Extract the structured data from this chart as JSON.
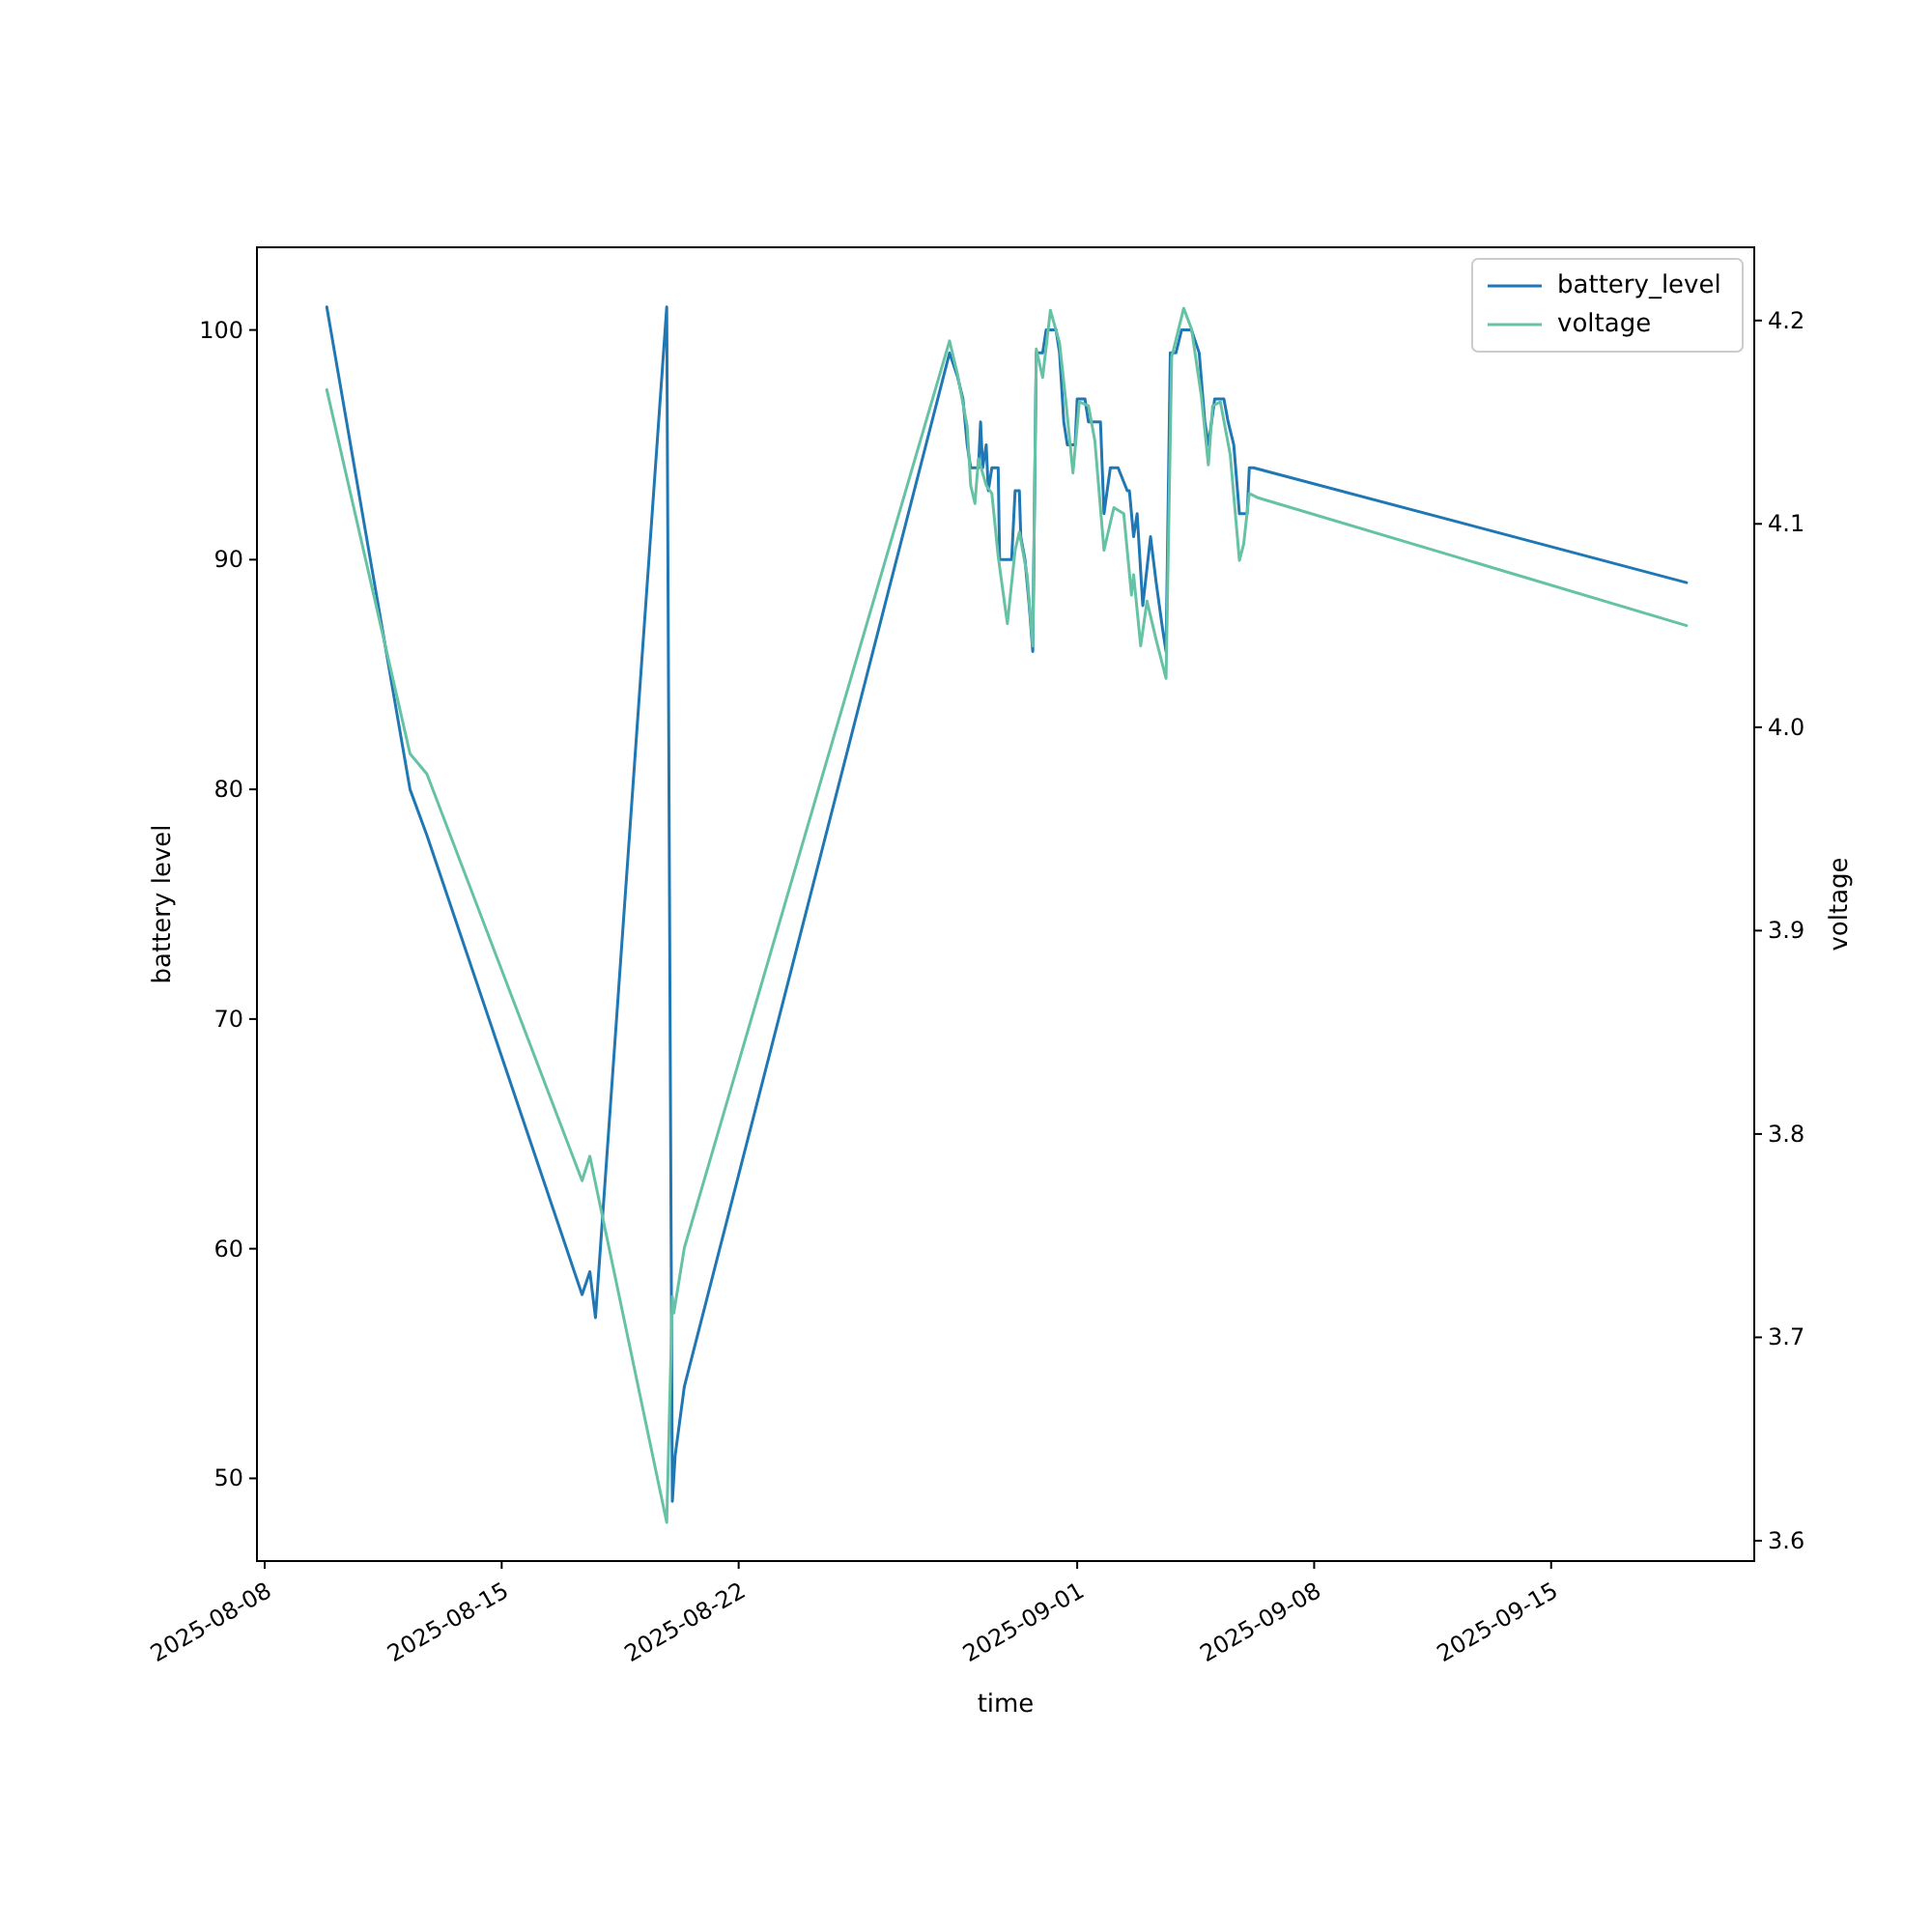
{
  "chart_data": {
    "type": "line",
    "xlabel": "time",
    "ylabel": "battery level",
    "y2label": "voltage",
    "xlim": [
      "2025-08-07T18:30",
      "2025-09-21T00:00"
    ],
    "xticks": [
      "2025-08-08",
      "2025-08-15",
      "2025-08-22",
      "2025-09-01",
      "2025-09-08",
      "2025-09-15"
    ],
    "ylim": [
      46.4,
      103.6
    ],
    "yticks": [
      50,
      60,
      70,
      80,
      90,
      100
    ],
    "y2lim": [
      3.59,
      4.236
    ],
    "y2ticks": [
      3.6,
      3.7,
      3.8,
      3.9,
      {
        "value": 4,
        "label": "4.0"
      },
      4.1,
      4.2
    ],
    "legend": "top right",
    "grid": false,
    "series": [
      {
        "name": "battery_level",
        "color": "#1f77b4",
        "x": [
          "2025-08-09T20:00",
          "2025-08-12T07:00",
          "2025-08-12T19:00",
          "2025-08-17T09:00",
          "2025-08-17T14:30",
          "2025-08-17T18:30",
          "2025-08-19T21:00",
          "2025-08-20T01:00",
          "2025-08-20T03:00",
          "2025-08-20T09:30",
          "2025-08-28T05:30",
          "2025-08-28T11:00",
          "2025-08-28T15:00",
          "2025-08-28T18:00",
          "2025-08-28T20:30",
          "2025-08-29T02:00",
          "2025-08-29T03:30",
          "2025-08-29T05:00",
          "2025-08-29T07:30",
          "2025-08-29T09:00",
          "2025-08-29T11:30",
          "2025-08-29T16:00",
          "2025-08-29T17:00",
          "2025-08-30T01:30",
          "2025-08-30T04:00",
          "2025-08-30T07:00",
          "2025-08-30T08:00",
          "2025-08-30T11:00",
          "2025-08-30T14:00",
          "2025-08-30T16:30",
          "2025-08-30T19:00",
          "2025-08-30T23:30",
          "2025-08-31T02:00",
          "2025-08-31T09:00",
          "2025-08-31T11:30",
          "2025-08-31T14:30",
          "2025-08-31T17:00",
          "2025-08-31T22:30",
          "2025-09-01T00:00",
          "2025-09-01T05:30",
          "2025-09-01T08:00",
          "2025-09-01T12:30",
          "2025-09-01T16:30",
          "2025-09-01T19:00",
          "2025-09-01T23:30",
          "2025-09-02T05:00",
          "2025-09-02T11:30",
          "2025-09-02T13:00",
          "2025-09-02T16:00",
          "2025-09-02T18:30",
          "2025-09-02T22:30",
          "2025-09-03T04:00",
          "2025-09-03T08:00",
          "2025-09-03T12:30",
          "2025-09-03T15:00",
          "2025-09-03T18:00",
          "2025-09-03T22:00",
          "2025-09-04T02:00",
          "2025-09-04T09:00",
          "2025-09-04T14:30",
          "2025-09-04T18:30",
          "2025-09-04T21:00",
          "2025-09-05T01:30",
          "2025-09-05T08:00",
          "2025-09-05T11:00",
          "2025-09-05T15:00",
          "2025-09-05T19:00",
          "2025-09-06T00:30",
          "2025-09-06T02:00",
          "2025-09-06T05:00",
          "2025-09-19T00:00"
        ],
        "values": [
          101,
          80,
          78,
          58,
          59,
          57,
          101,
          49,
          51,
          54,
          99,
          98,
          97,
          95,
          94,
          94,
          96,
          94,
          95,
          93,
          94,
          94,
          90,
          90,
          93,
          93,
          91,
          90,
          88,
          86,
          99,
          99,
          100,
          100,
          99,
          96,
          95,
          95,
          97,
          97,
          96,
          96,
          96,
          92,
          94,
          94,
          93,
          93,
          91,
          92,
          88,
          91,
          89,
          87,
          86,
          99,
          99,
          100,
          100,
          99,
          96,
          95,
          97,
          97,
          96,
          95,
          92,
          92,
          94,
          94,
          89
        ]
      },
      {
        "name": "voltage",
        "color": "#66c2a5",
        "axis": "y2",
        "x": [
          "2025-08-09T20:00",
          "2025-08-12T07:00",
          "2025-08-12T19:00",
          "2025-08-17T09:00",
          "2025-08-17T14:30",
          "2025-08-19T21:00",
          "2025-08-20T01:00",
          "2025-08-20T02:00",
          "2025-08-20T09:30",
          "2025-08-28T05:30",
          "2025-08-28T11:00",
          "2025-08-28T18:00",
          "2025-08-28T20:30",
          "2025-08-28T23:30",
          "2025-08-29T02:00",
          "2025-08-29T07:30",
          "2025-08-29T11:30",
          "2025-08-29T16:00",
          "2025-08-29T21:30",
          "2025-08-29T22:30",
          "2025-08-30T04:00",
          "2025-08-30T07:00",
          "2025-08-30T12:30",
          "2025-08-30T16:30",
          "2025-08-30T19:00",
          "2025-08-30T23:30",
          "2025-08-31T05:00",
          "2025-08-31T11:30",
          "2025-08-31T16:00",
          "2025-08-31T21:00",
          "2025-09-01T01:30",
          "2025-09-01T08:00",
          "2025-09-01T12:30",
          "2025-09-01T19:00",
          "2025-09-02T02:00",
          "2025-09-02T09:00",
          "2025-09-02T14:30",
          "2025-09-02T16:00",
          "2025-09-02T21:00",
          "2025-09-03T01:30",
          "2025-09-03T08:00",
          "2025-09-03T15:00",
          "2025-09-03T19:00",
          "2025-09-04T03:30",
          "2025-09-04T09:00",
          "2025-09-04T16:00",
          "2025-09-04T21:00",
          "2025-09-05T00:00",
          "2025-09-05T05:30",
          "2025-09-05T12:30",
          "2025-09-05T19:00",
          "2025-09-05T22:00",
          "2025-09-06T02:00",
          "2025-09-06T07:30",
          "2025-09-19T00:00"
        ],
        "values": [
          4.166,
          3.987,
          3.977,
          3.777,
          3.789,
          3.609,
          3.72,
          3.712,
          3.744,
          4.19,
          4.174,
          4.148,
          4.119,
          4.11,
          4.132,
          4.119,
          4.115,
          4.084,
          4.056,
          4.051,
          4.087,
          4.096,
          4.075,
          4.04,
          4.186,
          4.172,
          4.205,
          4.189,
          4.16,
          4.125,
          4.16,
          4.158,
          4.141,
          4.087,
          4.108,
          4.105,
          4.065,
          4.075,
          4.04,
          4.062,
          4.043,
          4.024,
          4.182,
          4.206,
          4.196,
          4.163,
          4.129,
          4.158,
          4.16,
          4.134,
          4.082,
          4.09,
          4.115,
          4.113,
          4.05
        ]
      }
    ]
  }
}
